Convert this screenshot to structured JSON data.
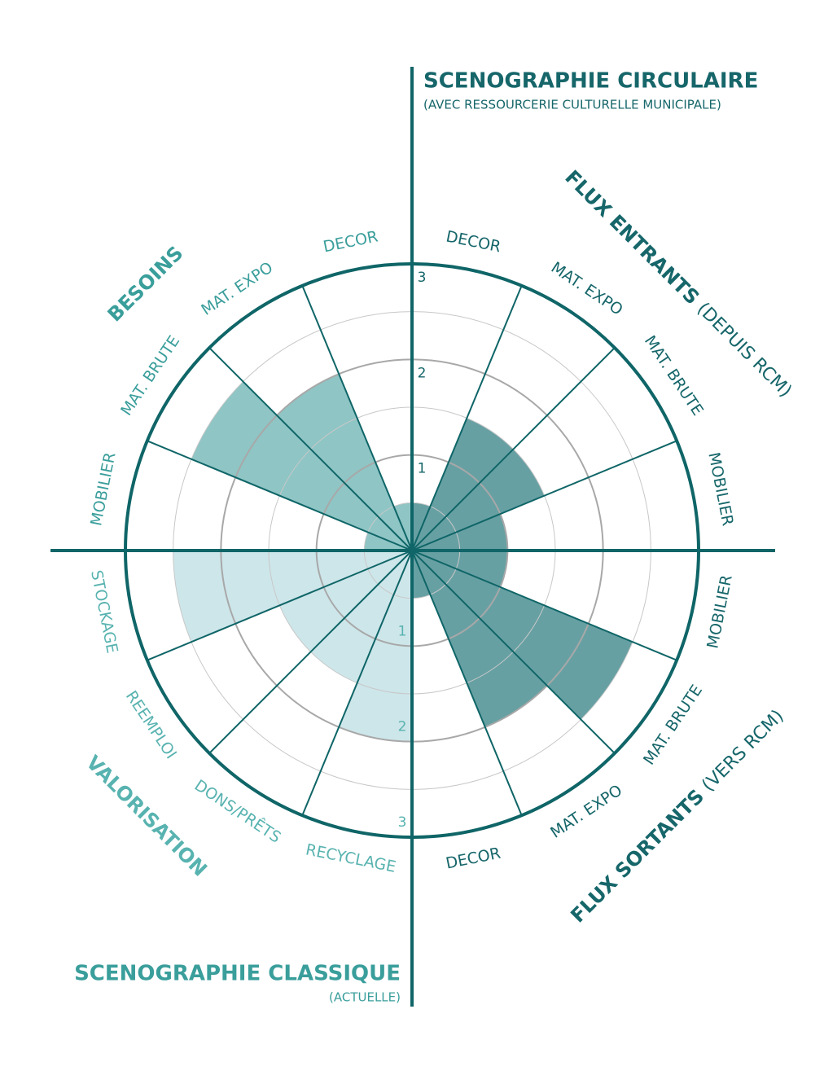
{
  "chart_data": {
    "type": "polar-area",
    "titles": [
      {
        "text": "SCENOGRAPHIE CIRCULAIRE",
        "subtitle": "(AVEC RESSOURCERIE CULTURELLE MUNICIPALE)",
        "color": "#16666a"
      },
      {
        "text": "SCENOGRAPHIE CLASSIQUE",
        "subtitle": "(ACTUELLE)",
        "color": "#3a9e9b"
      }
    ],
    "rlim": [
      0,
      3
    ],
    "rticks": [
      1,
      2,
      3
    ],
    "series": [
      {
        "name": "FLUX ENTRANTS",
        "note": "(DEPUIS RCM)",
        "color": "#67a0a3",
        "label_color": "#16666a",
        "categories": [
          "DECOR",
          "MAT. EXPO",
          "MAT. BRUTE",
          "MOBILIER"
        ],
        "values": [
          0.5,
          1.5,
          1.5,
          1
        ]
      },
      {
        "name": "FLUX SORTANTS",
        "note": "(VERS RCM)",
        "color": "#67a0a3",
        "label_color": "#16666a",
        "categories": [
          "MOBILIER",
          "MAT. BRUTE",
          "MAT. EXPO",
          "DECOR"
        ],
        "values": [
          1,
          2.5,
          2,
          0.5
        ]
      },
      {
        "name": "VALORISATION",
        "note": null,
        "color": "#cde6ea",
        "label_color": "#58b3b0",
        "categories": [
          "RECYCLAGE",
          "DONS/PRÊTS",
          "REEMPLOI",
          "STOCKAGE"
        ],
        "values": [
          2,
          1.5,
          1.5,
          2.5
        ]
      },
      {
        "name": "BESOINS",
        "note": null,
        "color": "#8fc5c5",
        "label_color": "#3a9e9b",
        "categories": [
          "MOBILIER",
          "MAT. BRUTE",
          "MAT. EXPO",
          "DECOR"
        ],
        "values": [
          0.5,
          2.5,
          2,
          0.5
        ]
      }
    ]
  }
}
